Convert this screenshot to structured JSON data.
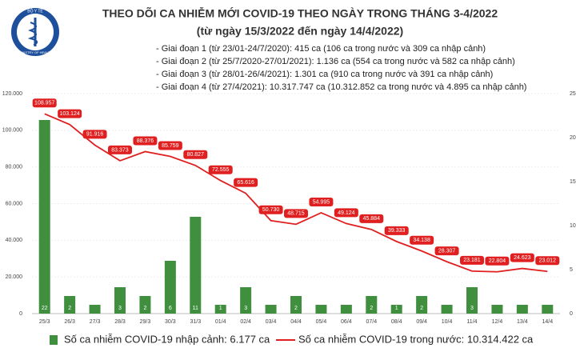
{
  "logo": {
    "top": "BỘ Y TẾ",
    "bottom": "MINISTRY OF HEALTH"
  },
  "chart_data": {
    "type": "bar-line",
    "title": "THEO DÕI CA NHIỄM MỚI COVID-19 THEO NGÀY TRONG THÁNG 3-4/2022",
    "subtitle": "(từ ngày 15/3/2022 đến ngày 14/4/2022)",
    "notes": [
      "- Giai đoạn 1 (từ 23/01-24/7/2020): 415 ca (106 ca trong nước và 309 ca nhập cảnh)",
      "- Giai đoạn 2 (từ 25/7/2020-27/01/2021): 1.136 ca (554 ca trong nước và 582 ca nhập cảnh)",
      "- Giai đoạn 3 (từ 28/01-26/4/2021): 1.301 ca (910 ca trong nước và 391 ca nhập cảnh)",
      "- Giai đoạn 4 (từ 27/4/2021): 10.317.747 ca (10.312.852 ca trong nước và 4.895 ca nhập cảnh)"
    ],
    "categories": [
      "25/3",
      "26/3",
      "27/3",
      "28/3",
      "29/3",
      "30/3",
      "31/3",
      "01/4",
      "02/4",
      "03/4",
      "04/4",
      "05/4",
      "06/4",
      "07/4",
      "08/4",
      "09/4",
      "10/4",
      "11/4",
      "12/4",
      "13/4",
      "14/4"
    ],
    "series": [
      {
        "name": "Số ca nhiễm COVID-19 nhập cảnh: 6.177 ca",
        "type": "bar",
        "axis": "y2",
        "color": "#3f8f3f",
        "values": [
          22,
          2,
          1,
          3,
          2,
          6,
          11,
          1,
          3,
          1,
          2,
          1,
          1,
          2,
          1,
          2,
          1,
          3,
          1,
          1,
          1
        ],
        "value_labels": [
          "22",
          "2",
          null,
          "3",
          "2",
          "6",
          "11",
          "1",
          "3",
          null,
          "2",
          null,
          null,
          "2",
          "1",
          "2",
          null,
          "3",
          null,
          null,
          null
        ]
      },
      {
        "name": "Số ca nhiễm COVID-19 trong nước: 10.314.422 ca",
        "type": "line",
        "color": "#e02020",
        "values": [
          108957,
          103124,
          91916,
          83373,
          88376,
          85759,
          80827,
          72555,
          65616,
          50730,
          48715,
          54995,
          49124,
          45884,
          39333,
          34138,
          28307,
          23181,
          22804,
          24623,
          23012
        ],
        "value_labels": [
          "108.957",
          "103.124",
          "91.916",
          "83.373",
          "88.376",
          "85.759",
          "80.827",
          "72.555",
          "65.616",
          "50.730",
          "48.715",
          "54.995",
          "49.124",
          "45.884",
          "39.333",
          "34.138",
          "28.307",
          "23.181",
          "22.804",
          "24.623",
          "23.012"
        ]
      }
    ],
    "ylim": [
      0,
      120000
    ],
    "yticks": [
      0,
      {
        "value": 20000,
        "label": "20.000"
      },
      {
        "value": 40000,
        "label": "40.000"
      },
      {
        "value": 60000,
        "label": "60.000"
      },
      {
        "value": 80000,
        "label": "80.000"
      },
      {
        "value": 100000,
        "label": "100.000"
      },
      {
        "value": 120000,
        "label": "120.000"
      }
    ],
    "y2lim": [
      0,
      25
    ],
    "y2ticks": [
      0,
      5,
      10,
      15,
      20,
      25
    ],
    "grid": true
  }
}
